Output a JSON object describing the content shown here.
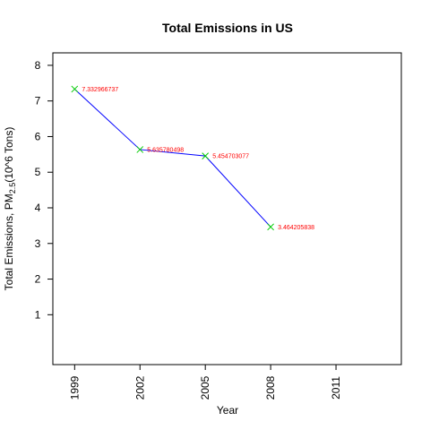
{
  "chart_data": {
    "type": "line",
    "title": "Total Emissions in US",
    "xlabel": "Year",
    "ylabel": {
      "prefix": "Total Emissions, PM",
      "subscript": "2.5",
      "suffix": "(10^6 Tons)"
    },
    "x": [
      1999,
      2002,
      2005,
      2008
    ],
    "y": [
      7.332966737,
      5.635780498,
      5.454703077,
      3.464205838
    ],
    "point_labels": [
      "7.332966737",
      "5.635780498",
      "5.454703077",
      "3.464205838"
    ],
    "x_ticks": [
      1999,
      2002,
      2005,
      2008,
      2011
    ],
    "y_ticks": [
      1,
      2,
      3,
      4,
      5,
      6,
      7,
      8
    ],
    "xlim": [
      1998,
      2014
    ],
    "ylim": [
      -0.4,
      8.35
    ],
    "grid": false,
    "legend": "none",
    "colors": {
      "line": "#0000ff",
      "points": "#00cc00",
      "labels": "#ff0000"
    }
  }
}
